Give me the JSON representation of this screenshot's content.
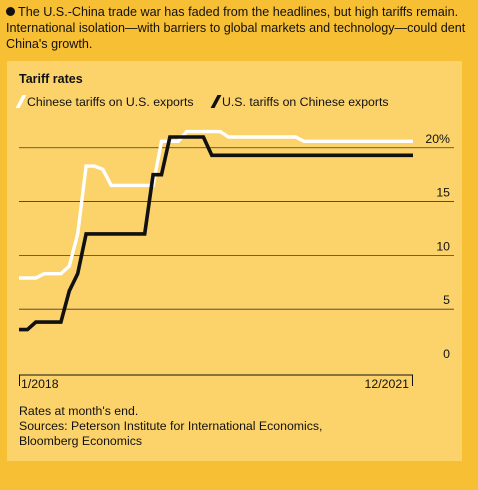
{
  "intro": "The U.S.-China trade war has faded from the headlines, but high tariffs remain. International isolation—with barriers to global markets and technology—could dent China's growth.",
  "panel_title": "Tariff rates",
  "colors": {
    "background": "#f7bf33",
    "panel": "#fcd36a",
    "chinese_series": "#ffffff",
    "us_series": "#111111",
    "grid": "#3a3a3a"
  },
  "notes": [
    "Rates at month's end.",
    "Sources: Peterson Institute for International Economics,",
    "Bloomberg Economics"
  ],
  "chart_data": {
    "type": "line",
    "title": "Tariff rates",
    "x_tick_labels": [
      "1/2018",
      "12/2021"
    ],
    "y_tick_labels": [
      "0",
      "5",
      "10",
      "15",
      "20%"
    ],
    "yticks": [
      0,
      5,
      10,
      15,
      20
    ],
    "xlim": [
      0,
      47
    ],
    "ylim": [
      0,
      21
    ],
    "grid": true,
    "legend_position": "top-left",
    "series": [
      {
        "name": "Chinese tariffs on U.S. exports",
        "color": "#ffffff",
        "x": [
          0,
          2,
          3,
          5,
          6,
          7,
          8,
          9,
          10,
          11,
          12,
          13,
          14,
          16,
          17,
          18,
          19,
          20,
          21,
          22,
          23,
          24,
          25,
          26,
          27,
          28,
          29,
          30,
          31,
          33,
          34,
          35,
          36,
          37,
          38,
          39,
          40,
          41,
          42,
          43,
          44,
          45,
          46,
          47
        ],
        "y": [
          7.9,
          7.9,
          8.3,
          8.3,
          9.0,
          12.0,
          18.3,
          18.3,
          18.0,
          16.5,
          16.5,
          16.5,
          16.5,
          16.5,
          20.6,
          20.6,
          20.6,
          21.5,
          21.5,
          21.5,
          21.5,
          21.5,
          21.0,
          21.0,
          21.0,
          21.0,
          21.0,
          21.0,
          21.0,
          21.0,
          20.6,
          20.6,
          20.6,
          20.6,
          20.6,
          20.6,
          20.6,
          20.6,
          20.6,
          20.6,
          20.6,
          20.6,
          20.6,
          20.6
        ]
      },
      {
        "name": "U.S. tariffs on Chinese exports",
        "color": "#111111",
        "x": [
          0,
          1,
          2,
          3,
          4,
          5,
          6,
          7,
          8,
          9,
          10,
          11,
          12,
          13,
          14,
          15,
          16,
          17,
          18,
          19,
          20,
          21,
          22,
          23,
          24,
          25,
          26,
          27,
          28,
          29,
          30,
          31,
          32,
          33,
          34,
          35,
          36,
          37,
          38,
          39,
          40,
          41,
          42,
          43,
          44,
          45,
          46,
          47
        ],
        "y": [
          3.1,
          3.1,
          3.8,
          3.8,
          3.8,
          3.8,
          6.7,
          8.3,
          12.0,
          12.0,
          12.0,
          12.0,
          12.0,
          12.0,
          12.0,
          12.0,
          17.5,
          17.5,
          21.0,
          21.0,
          21.0,
          21.0,
          21.0,
          19.3,
          19.3,
          19.3,
          19.3,
          19.3,
          19.3,
          19.3,
          19.3,
          19.3,
          19.3,
          19.3,
          19.3,
          19.3,
          19.3,
          19.3,
          19.3,
          19.3,
          19.3,
          19.3,
          19.3,
          19.3,
          19.3,
          19.3,
          19.3,
          19.3
        ]
      }
    ]
  }
}
